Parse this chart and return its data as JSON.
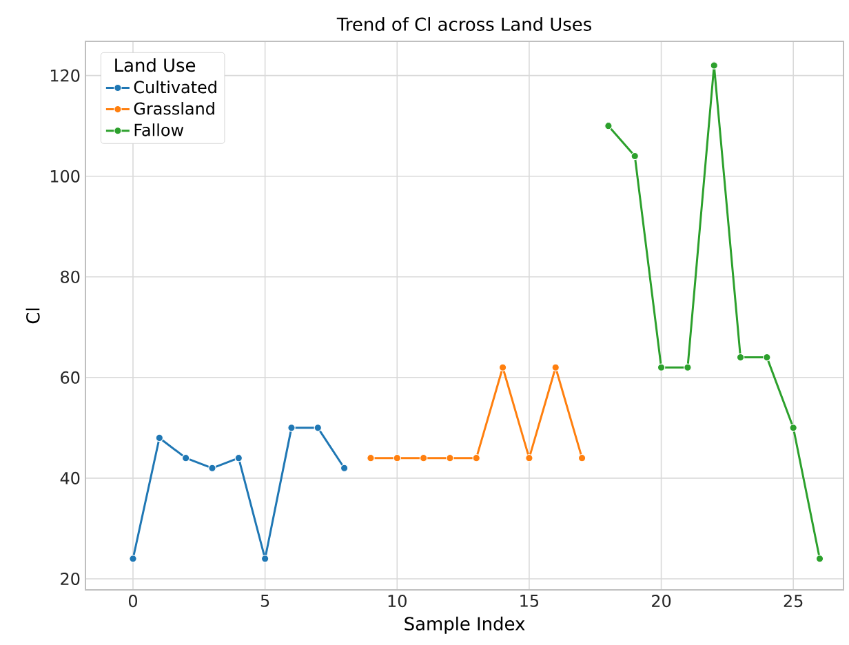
{
  "chart_data": {
    "type": "line",
    "title": "Trend of Cl across Land Uses",
    "xlabel": "Sample Index",
    "ylabel": "Cl",
    "legend_title": "Land Use",
    "series": [
      {
        "name": "Cultivated",
        "color": "#1f77b4",
        "x": [
          0,
          1,
          2,
          3,
          4,
          5,
          6,
          7,
          8
        ],
        "values": [
          24,
          48,
          44,
          42,
          44,
          24,
          50,
          50,
          42
        ]
      },
      {
        "name": "Grassland",
        "color": "#ff7f0e",
        "x": [
          9,
          10,
          11,
          12,
          13,
          14,
          15,
          16,
          17
        ],
        "values": [
          44,
          44,
          44,
          44,
          44,
          62,
          44,
          62,
          44
        ]
      },
      {
        "name": "Fallow",
        "color": "#2ca02c",
        "x": [
          18,
          19,
          20,
          21,
          22,
          23,
          24,
          25,
          26
        ],
        "values": [
          110,
          104,
          62,
          62,
          122,
          64,
          64,
          50,
          24
        ]
      }
    ],
    "xlim": [
      -1.8,
      26.9
    ],
    "ylim": [
      17.8,
      126.8
    ],
    "xticks": [
      0,
      5,
      10,
      15,
      20,
      25
    ],
    "yticks": [
      20,
      40,
      60,
      80,
      100,
      120
    ],
    "grid": true,
    "legend": "top left",
    "marker": "circle",
    "line_style": "solid"
  }
}
